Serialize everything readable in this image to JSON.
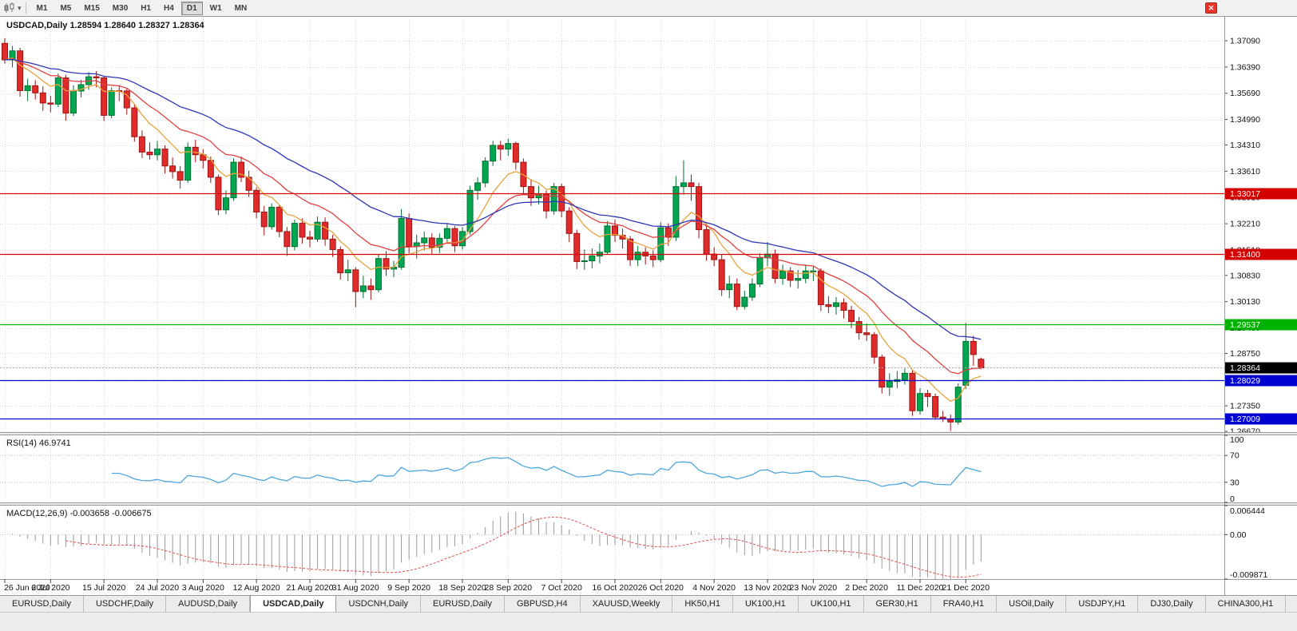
{
  "window": {
    "close_label": "✕"
  },
  "toolbar": {
    "caret": "▾",
    "timeframes": [
      "M1",
      "M5",
      "M15",
      "M30",
      "H1",
      "H4",
      "D1",
      "W1",
      "MN"
    ],
    "active_timeframe": "D1"
  },
  "chart": {
    "title": "USDCAD,Daily 1.28594 1.28640 1.28327 1.28364"
  },
  "tabs": {
    "active_index": 3,
    "items": [
      "EURUSD,Daily",
      "USDCHF,Daily",
      "AUDUSD,Daily",
      "USDCAD,Daily",
      "USDCNH,Daily",
      "EURUSD,Daily",
      "GBPUSD,H4",
      "XAUUSD,Weekly",
      "HK50,H1",
      "UK100,H1",
      "UK100,H1",
      "GER30,H1",
      "FRA40,H1",
      "USOil,Daily",
      "USDJPY,H1",
      "DJ30,Daily",
      "CHINA300,H1",
      "US"
    ]
  },
  "chart_data": {
    "type": "candlestick",
    "symbol": "USDCAD",
    "timeframe": "Daily",
    "ohlc": [
      [
        1.3702,
        1.3716,
        1.3648,
        1.3658
      ],
      [
        1.3658,
        1.3695,
        1.3638,
        1.3682
      ],
      [
        1.3682,
        1.369,
        1.356,
        1.3576
      ],
      [
        1.3576,
        1.3608,
        1.3548,
        1.3589
      ],
      [
        1.3589,
        1.3604,
        1.3552,
        1.357
      ],
      [
        1.357,
        1.3588,
        1.3522,
        1.3543
      ],
      [
        1.3543,
        1.3562,
        1.3518,
        1.354
      ],
      [
        1.354,
        1.3622,
        1.3532,
        1.361
      ],
      [
        1.361,
        1.3618,
        1.3496,
        1.3516
      ],
      [
        1.3516,
        1.359,
        1.3508,
        1.3575
      ],
      [
        1.3575,
        1.3605,
        1.3558,
        1.3592
      ],
      [
        1.3592,
        1.3625,
        1.3578,
        1.3613
      ],
      [
        1.3613,
        1.3628,
        1.3585,
        1.361
      ],
      [
        1.361,
        1.3615,
        1.3495,
        1.351
      ],
      [
        1.351,
        1.3585,
        1.3502,
        1.3576
      ],
      [
        1.3576,
        1.359,
        1.3548,
        1.3575
      ],
      [
        1.3575,
        1.3582,
        1.3512,
        1.353
      ],
      [
        1.353,
        1.354,
        1.344,
        1.3453
      ],
      [
        1.3453,
        1.347,
        1.3396,
        1.3412
      ],
      [
        1.3412,
        1.3438,
        1.3392,
        1.3405
      ],
      [
        1.3405,
        1.3442,
        1.339,
        1.342
      ],
      [
        1.342,
        1.343,
        1.3355,
        1.3375
      ],
      [
        1.3375,
        1.3398,
        1.3342,
        1.336
      ],
      [
        1.336,
        1.3375,
        1.3315,
        1.3337
      ],
      [
        1.3337,
        1.3438,
        1.333,
        1.3425
      ],
      [
        1.3425,
        1.3445,
        1.3385,
        1.3405
      ],
      [
        1.3405,
        1.342,
        1.3368,
        1.339
      ],
      [
        1.339,
        1.34,
        1.333,
        1.3345
      ],
      [
        1.3345,
        1.3352,
        1.3244,
        1.3258
      ],
      [
        1.3258,
        1.331,
        1.3246,
        1.329
      ],
      [
        1.329,
        1.3395,
        1.3282,
        1.3385
      ],
      [
        1.3385,
        1.34,
        1.3332,
        1.3345
      ],
      [
        1.3345,
        1.3362,
        1.3292,
        1.331
      ],
      [
        1.331,
        1.3318,
        1.3235,
        1.3252
      ],
      [
        1.3252,
        1.3268,
        1.319,
        1.3213
      ],
      [
        1.3213,
        1.3275,
        1.3205,
        1.3265
      ],
      [
        1.3265,
        1.327,
        1.3185,
        1.32
      ],
      [
        1.32,
        1.3212,
        1.3135,
        1.316
      ],
      [
        1.316,
        1.3232,
        1.315,
        1.3222
      ],
      [
        1.3222,
        1.3235,
        1.3168,
        1.3185
      ],
      [
        1.3185,
        1.3202,
        1.3158,
        1.318
      ],
      [
        1.318,
        1.324,
        1.3172,
        1.3225
      ],
      [
        1.3225,
        1.3238,
        1.3162,
        1.318
      ],
      [
        1.318,
        1.3192,
        1.3132,
        1.3152
      ],
      [
        1.3152,
        1.316,
        1.3072,
        1.309
      ],
      [
        1.309,
        1.3125,
        1.3068,
        1.3098
      ],
      [
        1.3098,
        1.3105,
        1.2998,
        1.304
      ],
      [
        1.304,
        1.3082,
        1.3022,
        1.3055
      ],
      [
        1.3055,
        1.3075,
        1.3018,
        1.3045
      ],
      [
        1.3045,
        1.314,
        1.3038,
        1.3128
      ],
      [
        1.3128,
        1.3148,
        1.3082,
        1.31
      ],
      [
        1.31,
        1.3122,
        1.3078,
        1.3105
      ],
      [
        1.3105,
        1.326,
        1.3098,
        1.3235
      ],
      [
        1.3235,
        1.3248,
        1.3142,
        1.316
      ],
      [
        1.316,
        1.3192,
        1.3128,
        1.317
      ],
      [
        1.317,
        1.32,
        1.315,
        1.3183
      ],
      [
        1.3183,
        1.3195,
        1.3138,
        1.3158
      ],
      [
        1.3158,
        1.3195,
        1.3142,
        1.3182
      ],
      [
        1.3182,
        1.3222,
        1.3168,
        1.3208
      ],
      [
        1.3208,
        1.3215,
        1.3145,
        1.3162
      ],
      [
        1.3162,
        1.3212,
        1.3152,
        1.32
      ],
      [
        1.32,
        1.3322,
        1.3192,
        1.331
      ],
      [
        1.331,
        1.3345,
        1.3285,
        1.333
      ],
      [
        1.333,
        1.3398,
        1.3318,
        1.3388
      ],
      [
        1.3388,
        1.3442,
        1.3375,
        1.343
      ],
      [
        1.343,
        1.3442,
        1.339,
        1.342
      ],
      [
        1.342,
        1.3448,
        1.3402,
        1.3435
      ],
      [
        1.3435,
        1.344,
        1.3365,
        1.3385
      ],
      [
        1.3385,
        1.3395,
        1.3298,
        1.332
      ],
      [
        1.332,
        1.334,
        1.3268,
        1.329
      ],
      [
        1.329,
        1.3322,
        1.3272,
        1.33
      ],
      [
        1.33,
        1.331,
        1.3235,
        1.3255
      ],
      [
        1.3255,
        1.333,
        1.3245,
        1.332
      ],
      [
        1.332,
        1.3328,
        1.3238,
        1.3255
      ],
      [
        1.3255,
        1.3265,
        1.3172,
        1.3195
      ],
      [
        1.3195,
        1.3205,
        1.31,
        1.312
      ],
      [
        1.312,
        1.3152,
        1.3098,
        1.3122
      ],
      [
        1.3122,
        1.3155,
        1.3102,
        1.3135
      ],
      [
        1.3135,
        1.3168,
        1.3115,
        1.3145
      ],
      [
        1.3145,
        1.3228,
        1.3138,
        1.3215
      ],
      [
        1.3215,
        1.3232,
        1.3172,
        1.319
      ],
      [
        1.319,
        1.3208,
        1.3155,
        1.318
      ],
      [
        1.318,
        1.3188,
        1.3108,
        1.3125
      ],
      [
        1.3125,
        1.3162,
        1.3108,
        1.3145
      ],
      [
        1.3145,
        1.3158,
        1.3112,
        1.3135
      ],
      [
        1.3135,
        1.315,
        1.3105,
        1.3125
      ],
      [
        1.3125,
        1.3225,
        1.3118,
        1.321
      ],
      [
        1.321,
        1.3222,
        1.3162,
        1.3185
      ],
      [
        1.3185,
        1.3348,
        1.3175,
        1.332
      ],
      [
        1.332,
        1.339,
        1.3298,
        1.333
      ],
      [
        1.333,
        1.3352,
        1.3282,
        1.332
      ],
      [
        1.332,
        1.333,
        1.3182,
        1.3205
      ],
      [
        1.3205,
        1.3222,
        1.3122,
        1.314
      ],
      [
        1.314,
        1.3158,
        1.3108,
        1.3125
      ],
      [
        1.3125,
        1.3138,
        1.3028,
        1.3045
      ],
      [
        1.3045,
        1.3082,
        1.3022,
        1.306
      ],
      [
        1.306,
        1.3075,
        1.299,
        1.3
      ],
      [
        1.3,
        1.3042,
        1.2992,
        1.3025
      ],
      [
        1.3025,
        1.3075,
        1.3015,
        1.306
      ],
      [
        1.306,
        1.3142,
        1.3052,
        1.313
      ],
      [
        1.313,
        1.3172,
        1.3108,
        1.314
      ],
      [
        1.314,
        1.3152,
        1.3062,
        1.3075
      ],
      [
        1.3075,
        1.3112,
        1.3058,
        1.3095
      ],
      [
        1.3095,
        1.3105,
        1.3052,
        1.307
      ],
      [
        1.307,
        1.3098,
        1.3048,
        1.3075
      ],
      [
        1.3075,
        1.3112,
        1.3062,
        1.3095
      ],
      [
        1.3095,
        1.3108,
        1.3068,
        1.3095
      ],
      [
        1.3095,
        1.3102,
        1.2988,
        1.3005
      ],
      [
        1.3005,
        1.3028,
        1.2982,
        1.3
      ],
      [
        1.3,
        1.3025,
        1.2978,
        1.301
      ],
      [
        1.301,
        1.3022,
        1.2968,
        1.299
      ],
      [
        1.299,
        1.3002,
        1.2942,
        1.296
      ],
      [
        1.296,
        1.2972,
        1.2912,
        1.293
      ],
      [
        1.293,
        1.2955,
        1.2908,
        1.2925
      ],
      [
        1.2925,
        1.2932,
        1.2848,
        1.2865
      ],
      [
        1.2865,
        1.2872,
        1.2768,
        1.2785
      ],
      [
        1.2785,
        1.2822,
        1.2762,
        1.28
      ],
      [
        1.28,
        1.2828,
        1.2782,
        1.2805
      ],
      [
        1.2805,
        1.2835,
        1.2792,
        1.2822
      ],
      [
        1.2822,
        1.283,
        1.2708,
        1.2722
      ],
      [
        1.2722,
        1.2782,
        1.2712,
        1.2768
      ],
      [
        1.2768,
        1.2778,
        1.2732,
        1.276
      ],
      [
        1.276,
        1.2768,
        1.2698,
        1.2705
      ],
      [
        1.2705,
        1.2722,
        1.2692,
        1.27
      ],
      [
        1.27,
        1.2712,
        1.2668,
        1.2692
      ],
      [
        1.2692,
        1.2795,
        1.2685,
        1.2785
      ],
      [
        1.279,
        1.2957,
        1.278,
        1.2907
      ],
      [
        1.2907,
        1.2922,
        1.2842,
        1.2872
      ],
      [
        1.28594,
        1.2864,
        1.28327,
        1.28364
      ]
    ],
    "x_labels": [
      {
        "t": "26 Jun 2020",
        "i": 0
      },
      {
        "t": "6 Jul 2020",
        "i": 6
      },
      {
        "t": "15 Jul 2020",
        "i": 13
      },
      {
        "t": "24 Jul 2020",
        "i": 20
      },
      {
        "t": "3 Aug 2020",
        "i": 26
      },
      {
        "t": "12 Aug 2020",
        "i": 33
      },
      {
        "t": "21 Aug 2020",
        "i": 40
      },
      {
        "t": "31 Aug 2020",
        "i": 46
      },
      {
        "t": "9 Sep 2020",
        "i": 53
      },
      {
        "t": "18 Sep 2020",
        "i": 60
      },
      {
        "t": "28 Sep 2020",
        "i": 66
      },
      {
        "t": "7 Oct 2020",
        "i": 73
      },
      {
        "t": "16 Oct 2020",
        "i": 80
      },
      {
        "t": "26 Oct 2020",
        "i": 86
      },
      {
        "t": "4 Nov 2020",
        "i": 93
      },
      {
        "t": "13 Nov 2020",
        "i": 100
      },
      {
        "t": "23 Nov 2020",
        "i": 106
      },
      {
        "t": "2 Dec 2020",
        "i": 113
      },
      {
        "t": "11 Dec 2020",
        "i": 120
      },
      {
        "t": "21 Dec 2020",
        "i": 126
      }
    ],
    "price_ticks": [
      "1.37090",
      "1.36390",
      "1.35690",
      "1.34990",
      "1.34310",
      "1.33610",
      "1.32910",
      "1.32210",
      "1.31510",
      "1.30830",
      "1.30130",
      "1.29430",
      "1.28750",
      "1.28050",
      "1.27350",
      "1.26670"
    ],
    "horizontal_lines": [
      {
        "price": 1.33017,
        "label": "1.33017",
        "color": "#d40000"
      },
      {
        "price": 1.314,
        "label": "1.31400",
        "color": "#d40000"
      },
      {
        "price": 1.29537,
        "label": "1.29537",
        "color": "#00b200"
      },
      {
        "price": 1.28029,
        "label": "1.28029",
        "color": "#0000d0"
      },
      {
        "price": 1.27009,
        "label": "1.27009",
        "color": "#0000d0"
      }
    ],
    "bid": {
      "price": 1.28364,
      "label": "1.28364",
      "label_bg": "#000000"
    },
    "moving_averages": [
      {
        "period": 8,
        "color": "#e8a33d"
      },
      {
        "period": 17,
        "color": "#e04040"
      },
      {
        "period": 34,
        "color": "#2d35b5"
      }
    ],
    "rsi": {
      "label": "RSI(14) 46.9741",
      "period": 14,
      "color": "#4da6dd",
      "axis": [
        "100",
        "70",
        "30",
        "0"
      ],
      "levels": [
        70,
        30
      ]
    },
    "macd": {
      "label": "MACD(12,26,9) -0.003658 -0.006675",
      "fast": 12,
      "slow": 26,
      "signal": 9,
      "axis_max": 0.006444,
      "axis_min": -0.009871,
      "axis": [
        "0.006444",
        "0.00",
        "-0.009871"
      ],
      "hist_color": "#9a9a9a",
      "signal_color": "#e05050"
    }
  }
}
